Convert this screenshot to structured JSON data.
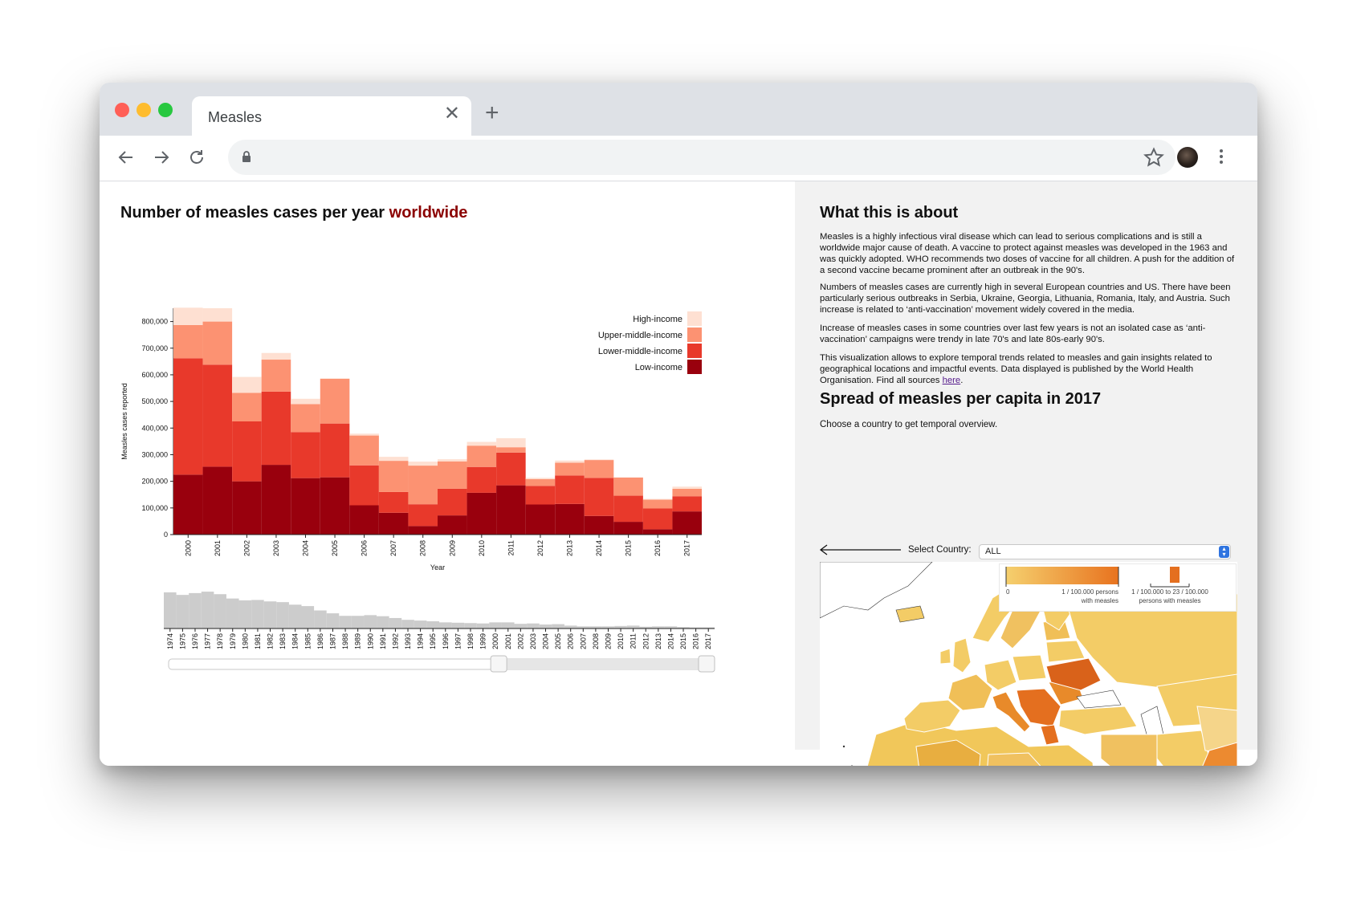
{
  "browser": {
    "tab_title": "Measles",
    "tab_close_glyph": "✕",
    "new_tab_glyph": "+",
    "traffic_lights": {
      "close": "#ff5f57",
      "minimize": "#febc2e",
      "zoom": "#28c840"
    },
    "address": ""
  },
  "main": {
    "title_prefix": "Number of measles cases per year",
    "title_highlight": "worldwide",
    "highlight_color": "#8b0000"
  },
  "about": {
    "title": "What this is about",
    "p1": "Measles is a highly infectious viral disease which can lead to serious complications and is still a worldwide major cause of death. A vaccine to protect against measles was developed in the 1963 and was quickly adopted. WHO recommends two doses of vaccine for all children. A push for the addition of a second vaccine became prominent after an outbreak in the 90's.",
    "p2": "Numbers of measles cases are currently high in several European countries and US. There have been particularly serious outbreaks in Serbia, Ukraine, Georgia, Lithuania, Romania, Italy, and Austria. Such increase is related to ‘anti-vaccination’ movement widely covered in the media.",
    "p3": "Increase of measles cases in some countries over last few years is not an isolated case as ‘anti-vaccination’ campaigns were trendy in late 70's and late 80s-early 90's.",
    "p4_text": "This visualization allows to explore temporal trends related to measles and gain insights related to geographical locations and impactful events. Data displayed is published by the World Health Organisation. Find all sources",
    "p4_link": "here",
    "p4_end": "."
  },
  "spread": {
    "title": "Spread of measles per capita in 2017",
    "instruction": "Choose a country to get temporal overview.",
    "select_label": "Select Country:",
    "select_value": "ALL",
    "legend_zero": "0",
    "legend_mid_line1": "1 / 100.000 persons",
    "legend_mid_line2": "with measles",
    "legend_right_line1": "1 / 100.000  to 23 / 100.000",
    "legend_right_line2": "persons with measles"
  },
  "chart_data": [
    {
      "type": "bar",
      "stacked": true,
      "title": "Number of measles cases per year worldwide",
      "xlabel": "Year",
      "ylabel": "Measles cases reported",
      "ylim": [
        0,
        850000
      ],
      "yticks": [
        "0",
        "100,000",
        "200,000",
        "300,000",
        "400,000",
        "500,000",
        "600,000",
        "700,000",
        "800,000"
      ],
      "ytick_values": [
        0,
        100000,
        200000,
        300000,
        400000,
        500000,
        600000,
        700000,
        800000
      ],
      "categories": [
        "2000",
        "2001",
        "2002",
        "2003",
        "2004",
        "2005",
        "2006",
        "2007",
        "2008",
        "2009",
        "2010",
        "2011",
        "2012",
        "2013",
        "2014",
        "2015",
        "2016",
        "2017"
      ],
      "legend_position": "top-right",
      "series": [
        {
          "name": "Low-income",
          "color": "#99000d",
          "values": [
            225000,
            255000,
            200000,
            262000,
            212000,
            215000,
            110000,
            82000,
            32000,
            72000,
            157000,
            185000,
            113000,
            115000,
            70000,
            48000,
            20000,
            87000
          ]
        },
        {
          "name": "Lower-middle-income",
          "color": "#e8392b",
          "values": [
            437000,
            383000,
            225000,
            275000,
            173000,
            202000,
            150000,
            78000,
            82000,
            100000,
            97000,
            123000,
            70000,
            107000,
            143000,
            98000,
            78000,
            57000
          ]
        },
        {
          "name": "Upper-middle-income",
          "color": "#fc9272",
          "values": [
            125000,
            162000,
            107000,
            120000,
            105000,
            168000,
            112000,
            117000,
            145000,
            103000,
            80000,
            20000,
            25000,
            48000,
            67000,
            68000,
            33000,
            28000
          ]
        },
        {
          "name": "High-income",
          "color": "#fee0d2",
          "values": [
            65000,
            50000,
            60000,
            25000,
            20000,
            2000,
            7000,
            15000,
            15000,
            8000,
            14000,
            34000,
            5000,
            8000,
            2000,
            1000,
            3000,
            8000
          ]
        }
      ]
    },
    {
      "type": "bar",
      "role": "overview-brush",
      "categories": [
        "1974",
        "1975",
        "1976",
        "1977",
        "1978",
        "1979",
        "1980",
        "1981",
        "1982",
        "1983",
        "1984",
        "1985",
        "1986",
        "1987",
        "1988",
        "1989",
        "1990",
        "1991",
        "1992",
        "1993",
        "1994",
        "1995",
        "1996",
        "1997",
        "1998",
        "1999",
        "2000",
        "2001",
        "2002",
        "2003",
        "2004",
        "2005",
        "2006",
        "2007",
        "2008",
        "2009",
        "2010",
        "2011",
        "2012",
        "2013",
        "2014",
        "2015",
        "2016",
        "2017"
      ],
      "values": [
        1.0,
        0.93,
        0.98,
        1.02,
        0.95,
        0.83,
        0.78,
        0.79,
        0.75,
        0.73,
        0.66,
        0.62,
        0.5,
        0.42,
        0.35,
        0.35,
        0.37,
        0.34,
        0.29,
        0.24,
        0.22,
        0.2,
        0.17,
        0.16,
        0.15,
        0.14,
        0.17,
        0.17,
        0.13,
        0.14,
        0.11,
        0.12,
        0.08,
        0.06,
        0.06,
        0.06,
        0.07,
        0.08,
        0.05,
        0.06,
        0.06,
        0.04,
        0.03,
        0.03
      ],
      "color": "#cccccc",
      "brush_range": [
        "2000",
        "2017"
      ]
    }
  ]
}
